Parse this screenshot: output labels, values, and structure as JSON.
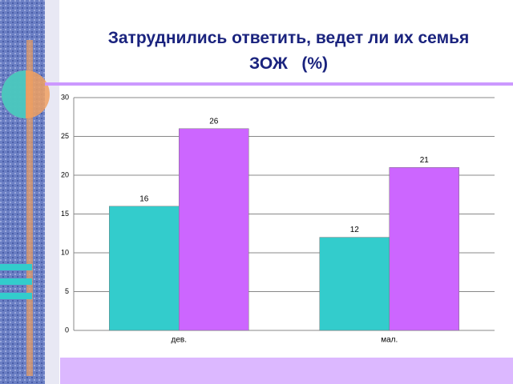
{
  "chart_data": {
    "type": "bar",
    "title": "Затруднились ответить, ведет ли их семья ЗОЖ   (%)",
    "categories": [
      "дев.",
      "мал."
    ],
    "series": [
      {
        "color": "#33cccc",
        "values": [
          16,
          12
        ]
      },
      {
        "color": "#cc66ff",
        "values": [
          26,
          21
        ]
      }
    ],
    "ylim": [
      0,
      30
    ],
    "yticks": [
      0,
      5,
      10,
      15,
      20,
      25,
      30
    ],
    "grid": true
  }
}
